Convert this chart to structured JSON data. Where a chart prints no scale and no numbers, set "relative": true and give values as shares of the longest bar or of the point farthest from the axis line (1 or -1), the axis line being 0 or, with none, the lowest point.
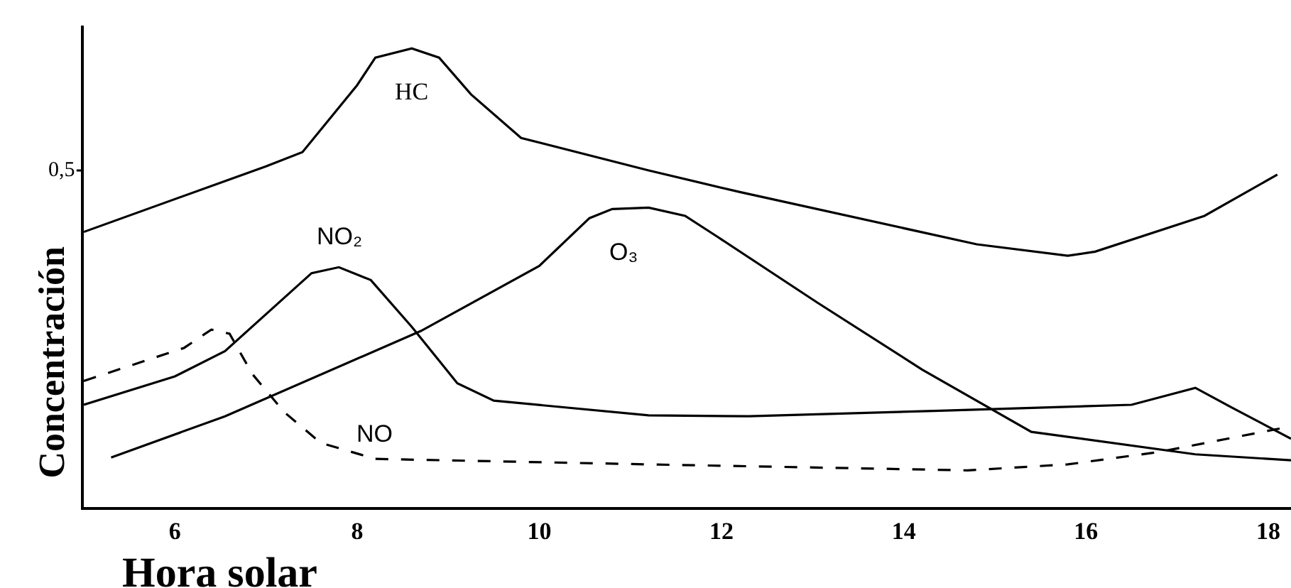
{
  "chart_data": {
    "type": "line",
    "relative": true,
    "xlabel": "Hora solar",
    "ylabel": "Concentración",
    "annotations": [
      "0,5"
    ],
    "xlim": [
      5,
      18.25
    ],
    "xticks": [
      6,
      8,
      10,
      12,
      14,
      16,
      18
    ],
    "grid": false,
    "marker": "none",
    "series": [
      {
        "name": "HC",
        "color": "#000000",
        "x": [
          5.0,
          7.0,
          7.4,
          8.0,
          8.2,
          8.6,
          8.9,
          9.25,
          9.8,
          11.2,
          12.2,
          14.8,
          15.8,
          16.1,
          17.3,
          18.1
        ],
        "values": [
          0.6,
          0.743,
          0.774,
          0.92,
          0.98,
          1.0,
          0.98,
          0.9,
          0.805,
          0.734,
          0.687,
          0.573,
          0.548,
          0.557,
          0.635,
          0.725
        ]
      },
      {
        "name": "NO₂",
        "color": "#000000",
        "x": [
          5.0,
          6.0,
          6.55,
          7.5,
          7.8,
          8.15,
          8.6,
          9.1,
          9.5,
          11.2,
          12.3,
          14.4,
          16.5,
          17.2,
          17.6,
          18.25
        ],
        "values": [
          0.223,
          0.285,
          0.34,
          0.51,
          0.523,
          0.495,
          0.393,
          0.27,
          0.232,
          0.2,
          0.198,
          0.21,
          0.223,
          0.26,
          0.217,
          0.149
        ]
      },
      {
        "name": "O₃",
        "color": "#000000",
        "x": [
          5.3,
          6.55,
          8.7,
          10.0,
          10.55,
          10.8,
          11.2,
          11.6,
          11.95,
          13.05,
          14.2,
          15.4,
          17.2,
          18.25
        ],
        "values": [
          0.108,
          0.198,
          0.384,
          0.526,
          0.63,
          0.65,
          0.653,
          0.635,
          0.59,
          0.446,
          0.3,
          0.164,
          0.115,
          0.102
        ]
      },
      {
        "name": "NO",
        "color": "#000000",
        "line_style": "dashed",
        "x": [
          5.0,
          6.1,
          6.4,
          6.6,
          6.85,
          7.2,
          7.6,
          8.2,
          11.2,
          14.7,
          15.8,
          16.8,
          18.25
        ],
        "values": [
          0.275,
          0.347,
          0.387,
          0.378,
          0.29,
          0.207,
          0.14,
          0.105,
          0.093,
          0.08,
          0.093,
          0.12,
          0.176
        ]
      }
    ]
  }
}
